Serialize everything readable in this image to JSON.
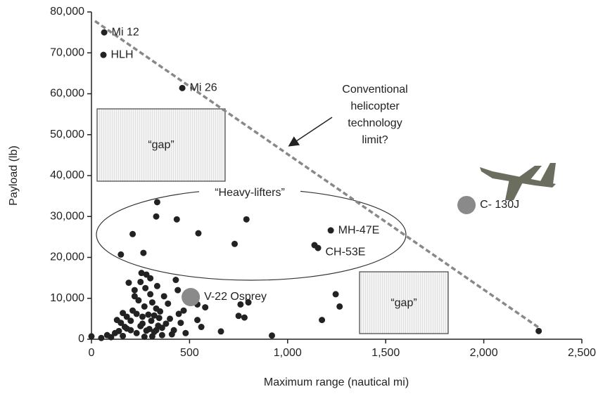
{
  "chart_data": {
    "type": "scatter",
    "x_label": "Maximum range (nautical mi)",
    "y_label": "Payload (lb)",
    "xlim": [
      0,
      2500
    ],
    "xticks": [
      0,
      500,
      {
        "value": 1000,
        "label": "1,000"
      },
      {
        "value": 1500,
        "label": "1,500"
      },
      {
        "value": 2000,
        "label": "2,000"
      },
      {
        "value": 2500,
        "label": "2,500"
      }
    ],
    "ylim": [
      0,
      80000
    ],
    "yticks": [
      0,
      {
        "value": 10000,
        "label": "10,000"
      },
      {
        "value": 20000,
        "label": "20,000"
      },
      {
        "value": 30000,
        "label": "30,000"
      },
      {
        "value": 40000,
        "label": "40,000"
      },
      {
        "value": 50000,
        "label": "50,000"
      },
      {
        "value": 60000,
        "label": "60,000"
      },
      {
        "value": 70000,
        "label": "70,000"
      },
      {
        "value": 80000,
        "label": "80,000"
      }
    ],
    "series": [
      {
        "color": "#222222",
        "x": [
          65,
          61,
          463,
          1220,
          1155,
          1137,
          335,
          330,
          435,
          790,
          210,
          545,
          265,
          150,
          730,
          1245,
          1265,
          1175,
          920,
          2280,
          760,
          800,
          780,
          750,
          660,
          540,
          580,
          540,
          560,
          0,
          50,
          80,
          100,
          120,
          140,
          150,
          160,
          170,
          180,
          190,
          200,
          210,
          220,
          230,
          240,
          250,
          255,
          260,
          270,
          275,
          280,
          290,
          295,
          300,
          305,
          310,
          320,
          330,
          335,
          340,
          345,
          350,
          360,
          370,
          380,
          390,
          400,
          410,
          420,
          430,
          440,
          445,
          455,
          470,
          480,
          200,
          230,
          260,
          320,
          280,
          250,
          310,
          360,
          180,
          270,
          330,
          160,
          130,
          220,
          300
        ],
        "y": [
          75000,
          69500,
          61400,
          26600,
          22300,
          23000,
          33500,
          30000,
          29300,
          29300,
          25700,
          25900,
          21100,
          20700,
          23300,
          11000,
          8000,
          4700,
          900,
          2000,
          8500,
          9000,
          5300,
          5700,
          1900,
          8500,
          7800,
          4700,
          3000,
          700,
          300,
          1000,
          500,
          1500,
          2000,
          4000,
          800,
          3000,
          5500,
          13800,
          2200,
          7000,
          12000,
          1500,
          9500,
          14000,
          16200,
          3800,
          8000,
          12500,
          15800,
          6000,
          2500,
          11000,
          4500,
          9000,
          1800,
          7500,
          13000,
          3300,
          5200,
          6800,
          2800,
          10500,
          3800,
          8700,
          5000,
          1200,
          2200,
          14500,
          12000,
          6200,
          4000,
          7000,
          1500,
          4500,
          6200,
          5500,
          5800,
          2100,
          3200,
          700,
          1000,
          2600,
          600,
          2200,
          6400,
          4700,
          10500,
          14900
        ],
        "labels": [
          "Mi 12",
          "HLH",
          "Mi 26",
          "MH-47E",
          "CH-53E",
          null,
          null,
          null,
          null,
          null,
          null,
          null,
          null,
          null,
          null,
          null,
          null,
          null,
          null,
          null,
          null,
          null,
          null,
          null,
          null,
          null,
          null,
          null,
          null,
          null,
          null,
          null,
          null,
          null,
          null,
          null,
          null,
          null,
          null,
          null,
          null,
          null,
          null,
          null,
          null,
          null,
          null,
          null,
          null,
          null,
          null,
          null,
          null,
          null,
          null,
          null,
          null,
          null,
          null,
          null,
          null,
          null,
          null,
          null,
          null,
          null,
          null,
          null,
          null,
          null,
          null,
          null,
          null,
          null,
          null,
          null,
          null,
          null,
          null,
          null,
          null,
          null,
          null,
          null,
          null,
          null,
          null,
          null,
          null,
          null
        ]
      },
      {
        "color": "#8a8a8a",
        "x": [
          506,
          1912
        ],
        "y": [
          10300,
          32800
        ],
        "labels": [
          "V-22 Osprey",
          "C- 130J"
        ]
      }
    ],
    "annotations": [
      "“gap”",
      "“gap”",
      "“Heavy-lifters”",
      "Conventional",
      "helicopter",
      "technology",
      "limit?"
    ]
  }
}
